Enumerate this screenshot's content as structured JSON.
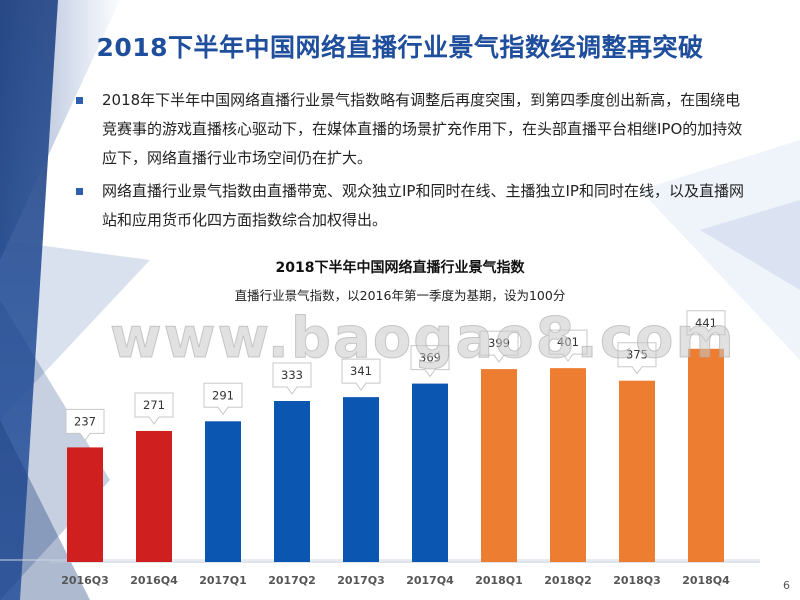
{
  "slide": {
    "title": "2018下半年中国网络直播行业景气指数经调整再突破",
    "bullets": [
      "2018年下半年中国网络直播行业景气指数略有调整后再度突围，到第四季度创出新高，在围绕电竞赛事的游戏直播核心驱动下，在媒体直播的场景扩充作用下，在头部直播平台相继IPO的加持效应下，网络直播行业市场空间仍在扩大。",
      "网络直播行业景气指数由直播带宽、观众独立IP和同时在线、主播独立IP和同时在线，以及直播网站和应用货币化四方面指数综合加权得出。"
    ],
    "watermark": "www.baogao8.com",
    "page_number": "6"
  },
  "colors": {
    "title": "#1f4e9c",
    "red": "#d01f1f",
    "blue": "#0b56b0",
    "orange": "#ed7d31"
  },
  "chart_data": {
    "type": "bar",
    "title": "2018下半年中国网络直播行业景气指数",
    "subtitle": "直播行业景气指数，以2016年第一季度为基期，设为100分",
    "categories": [
      "2016Q3",
      "2016Q4",
      "2017Q1",
      "2017Q2",
      "2017Q3",
      "2017Q4",
      "2018Q1",
      "2018Q2",
      "2018Q3",
      "2018Q4"
    ],
    "values": [
      237,
      271,
      291,
      333,
      341,
      369,
      399,
      401,
      375,
      441
    ],
    "bar_colors": [
      "#d01f1f",
      "#d01f1f",
      "#0b56b0",
      "#0b56b0",
      "#0b56b0",
      "#0b56b0",
      "#ed7d31",
      "#ed7d31",
      "#ed7d31",
      "#ed7d31"
    ],
    "ylim": [
      0,
      450
    ],
    "grid": false,
    "legend": "none",
    "data_labels": true
  }
}
